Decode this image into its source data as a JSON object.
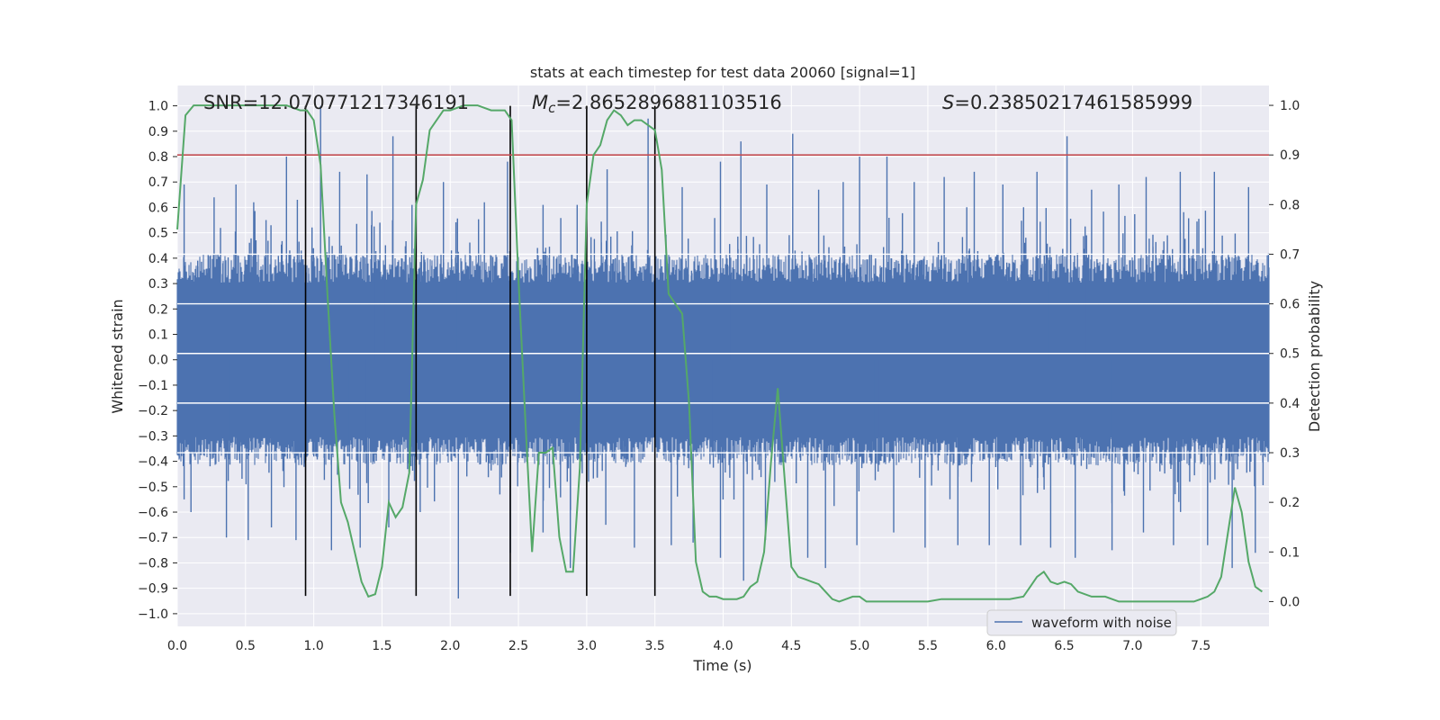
{
  "chart_data": {
    "type": "line",
    "title": "stats at each timestep for test data 20060 [signal=1]",
    "xlabel": "Time (s)",
    "ylabel": "Whitened strain",
    "ylabel_right": "Detection probability",
    "xlim": [
      0,
      8
    ],
    "ylim": [
      -1.05,
      1.08
    ],
    "ylim_right": [
      -0.05,
      1.04
    ],
    "x_ticks": [
      0.0,
      0.5,
      1.0,
      1.5,
      2.0,
      2.5,
      3.0,
      3.5,
      4.0,
      4.5,
      5.0,
      5.5,
      6.0,
      6.5,
      7.0,
      7.5
    ],
    "x_tick_labels": [
      "0.0",
      "0.5",
      "1.0",
      "1.5",
      "2.0",
      "2.5",
      "3.0",
      "3.5",
      "4.0",
      "4.5",
      "5.0",
      "5.5",
      "6.0",
      "6.5",
      "7.0",
      "7.5"
    ],
    "y_ticks": [
      1.0,
      0.9,
      0.8,
      0.7,
      0.6,
      0.5,
      0.4,
      0.3,
      0.2,
      0.1,
      0.0,
      -0.1,
      -0.2,
      -0.3,
      -0.4,
      -0.5,
      -0.6,
      -0.7,
      -0.8,
      -0.9,
      -1.0
    ],
    "y_tick_labels": [
      "1.0",
      "0.9",
      "0.8",
      "0.7",
      "0.6",
      "0.5",
      "0.4",
      "0.3",
      "0.2",
      "0.1",
      "0.0",
      "−0.1",
      "−0.2",
      "−0.3",
      "−0.4",
      "−0.5",
      "−0.6",
      "−0.7",
      "−0.8",
      "−0.9",
      "−1.0"
    ],
    "y_right_ticks": [
      1.0,
      0.9,
      0.8,
      0.7,
      0.6,
      0.5,
      0.4,
      0.3,
      0.2,
      0.1,
      0.0
    ],
    "y_right_tick_labels": [
      "1.0",
      "0.9",
      "0.8",
      "0.7",
      "0.6",
      "0.5",
      "0.4",
      "0.3",
      "0.2",
      "0.1",
      "0.0"
    ],
    "grid": true,
    "annotations": {
      "snr": "SNR=12.070771217346191",
      "mc_symbol": "M",
      "mc_sub": "c",
      "mc_value": "=2.8652896881103516",
      "s_symbol": "S",
      "s_value": "=0.23850217461585999"
    },
    "threshold_right": 0.9,
    "vlines_x": [
      0.94,
      1.75,
      2.44,
      3.0,
      3.5
    ],
    "vlines_y_range": [
      -0.93,
      1.0
    ],
    "legend": {
      "entries": [
        "waveform with noise"
      ],
      "placement": "lower-right"
    },
    "waveform": {
      "name": "waveform with noise",
      "band_abs_envelope": 0.32,
      "upper_spikes": [
        [
          0.05,
          0.69
        ],
        [
          0.27,
          0.64
        ],
        [
          0.43,
          0.69
        ],
        [
          0.56,
          0.62
        ],
        [
          0.65,
          0.55
        ],
        [
          0.8,
          0.8
        ],
        [
          0.88,
          0.63
        ],
        [
          1.05,
          1.0
        ],
        [
          1.19,
          0.74
        ],
        [
          1.39,
          0.73
        ],
        [
          1.58,
          0.88
        ],
        [
          1.72,
          0.61
        ],
        [
          1.95,
          0.7
        ],
        [
          2.25,
          0.62
        ],
        [
          2.42,
          0.78
        ],
        [
          2.68,
          0.61
        ],
        [
          2.93,
          0.61
        ],
        [
          3.15,
          0.75
        ],
        [
          3.45,
          0.95
        ],
        [
          3.7,
          0.68
        ],
        [
          3.98,
          0.78
        ],
        [
          4.13,
          0.86
        ],
        [
          4.32,
          0.69
        ],
        [
          4.51,
          0.89
        ],
        [
          4.7,
          0.67
        ],
        [
          4.88,
          0.7
        ],
        [
          5.0,
          0.8
        ],
        [
          5.2,
          0.8
        ],
        [
          5.4,
          0.7
        ],
        [
          5.62,
          0.72
        ],
        [
          5.84,
          0.74
        ],
        [
          6.05,
          0.69
        ],
        [
          6.3,
          0.74
        ],
        [
          6.52,
          0.88
        ],
        [
          6.7,
          0.67
        ],
        [
          6.9,
          0.69
        ],
        [
          7.1,
          0.72
        ],
        [
          7.35,
          0.74
        ],
        [
          7.6,
          0.74
        ],
        [
          7.85,
          0.68
        ]
      ],
      "lower_spikes": [
        [
          0.05,
          -0.55
        ],
        [
          0.1,
          -0.6
        ],
        [
          0.36,
          -0.7
        ],
        [
          0.52,
          -0.71
        ],
        [
          0.69,
          -0.66
        ],
        [
          0.87,
          -0.71
        ],
        [
          1.13,
          -0.75
        ],
        [
          1.34,
          -0.74
        ],
        [
          1.55,
          -0.66
        ],
        [
          1.78,
          -0.6
        ],
        [
          2.06,
          -0.94
        ],
        [
          2.44,
          -0.76
        ],
        [
          2.68,
          -0.68
        ],
        [
          2.88,
          -0.82
        ],
        [
          3.14,
          -0.65
        ],
        [
          3.35,
          -0.74
        ],
        [
          3.62,
          -0.73
        ],
        [
          3.78,
          -0.72
        ],
        [
          3.98,
          -0.78
        ],
        [
          4.15,
          -0.87
        ],
        [
          4.31,
          -0.71
        ],
        [
          4.62,
          -0.78
        ],
        [
          4.75,
          -0.82
        ],
        [
          4.98,
          -0.73
        ],
        [
          5.25,
          -0.68
        ],
        [
          5.48,
          -0.74
        ],
        [
          5.72,
          -0.73
        ],
        [
          5.95,
          -0.73
        ],
        [
          6.18,
          -0.73
        ],
        [
          6.4,
          -0.74
        ],
        [
          6.58,
          -0.78
        ],
        [
          6.85,
          -0.75
        ],
        [
          7.08,
          -0.68
        ],
        [
          7.3,
          -0.73
        ],
        [
          7.55,
          -0.73
        ],
        [
          7.73,
          -0.82
        ],
        [
          7.9,
          -0.76
        ]
      ]
    },
    "detection_probability": {
      "x": [
        0.0,
        0.06,
        0.12,
        0.2,
        0.3,
        0.4,
        0.5,
        0.6,
        0.7,
        0.8,
        0.9,
        0.95,
        1.0,
        1.05,
        1.1,
        1.15,
        1.2,
        1.25,
        1.3,
        1.35,
        1.4,
        1.45,
        1.5,
        1.55,
        1.6,
        1.65,
        1.7,
        1.75,
        1.8,
        1.85,
        1.9,
        1.95,
        2.0,
        2.1,
        2.2,
        2.3,
        2.4,
        2.45,
        2.5,
        2.55,
        2.6,
        2.65,
        2.7,
        2.75,
        2.8,
        2.85,
        2.9,
        2.95,
        3.0,
        3.05,
        3.1,
        3.15,
        3.2,
        3.25,
        3.3,
        3.35,
        3.4,
        3.45,
        3.5,
        3.55,
        3.6,
        3.65,
        3.7,
        3.75,
        3.8,
        3.85,
        3.9,
        3.95,
        4.0,
        4.05,
        4.1,
        4.15,
        4.2,
        4.25,
        4.3,
        4.35,
        4.4,
        4.45,
        4.5,
        4.55,
        4.6,
        4.65,
        4.7,
        4.75,
        4.8,
        4.85,
        4.9,
        4.95,
        5.0,
        5.05,
        5.1,
        5.2,
        5.3,
        5.4,
        5.5,
        5.6,
        5.7,
        5.8,
        5.9,
        6.0,
        6.1,
        6.2,
        6.25,
        6.3,
        6.35,
        6.4,
        6.45,
        6.5,
        6.55,
        6.6,
        6.7,
        6.8,
        6.9,
        7.0,
        7.1,
        7.2,
        7.3,
        7.4,
        7.45,
        7.5,
        7.55,
        7.6,
        7.65,
        7.7,
        7.75,
        7.8,
        7.85,
        7.9,
        7.95
      ],
      "y": [
        0.75,
        0.98,
        1.0,
        1.0,
        1.0,
        1.0,
        1.0,
        1.0,
        1.0,
        1.0,
        0.99,
        0.99,
        0.97,
        0.88,
        0.62,
        0.38,
        0.2,
        0.16,
        0.1,
        0.04,
        0.01,
        0.015,
        0.07,
        0.2,
        0.17,
        0.19,
        0.26,
        0.8,
        0.85,
        0.95,
        0.97,
        0.99,
        0.99,
        1.0,
        1.0,
        0.99,
        0.99,
        0.97,
        0.65,
        0.37,
        0.1,
        0.3,
        0.3,
        0.31,
        0.13,
        0.06,
        0.06,
        0.27,
        0.8,
        0.9,
        0.92,
        0.97,
        0.99,
        0.98,
        0.96,
        0.97,
        0.97,
        0.96,
        0.95,
        0.87,
        0.62,
        0.6,
        0.58,
        0.4,
        0.08,
        0.02,
        0.01,
        0.01,
        0.005,
        0.005,
        0.005,
        0.01,
        0.03,
        0.04,
        0.1,
        0.28,
        0.43,
        0.25,
        0.07,
        0.05,
        0.045,
        0.04,
        0.035,
        0.02,
        0.005,
        0.0,
        0.005,
        0.01,
        0.01,
        0.0,
        0.0,
        0.0,
        0.0,
        0.0,
        0.0,
        0.005,
        0.005,
        0.005,
        0.005,
        0.005,
        0.005,
        0.01,
        0.03,
        0.05,
        0.06,
        0.04,
        0.035,
        0.04,
        0.035,
        0.02,
        0.01,
        0.01,
        0.0,
        0.0,
        0.0,
        0.0,
        0.0,
        0.0,
        0.0,
        0.005,
        0.01,
        0.02,
        0.05,
        0.14,
        0.23,
        0.18,
        0.08,
        0.03,
        0.02
      ]
    },
    "colors": {
      "background": "#eaeaf2",
      "grid": "#ffffff",
      "waveform": "#4c72b0",
      "probability": "#55a868",
      "threshold": "#c44e52",
      "vlines": "#000000",
      "text": "#262626"
    }
  }
}
